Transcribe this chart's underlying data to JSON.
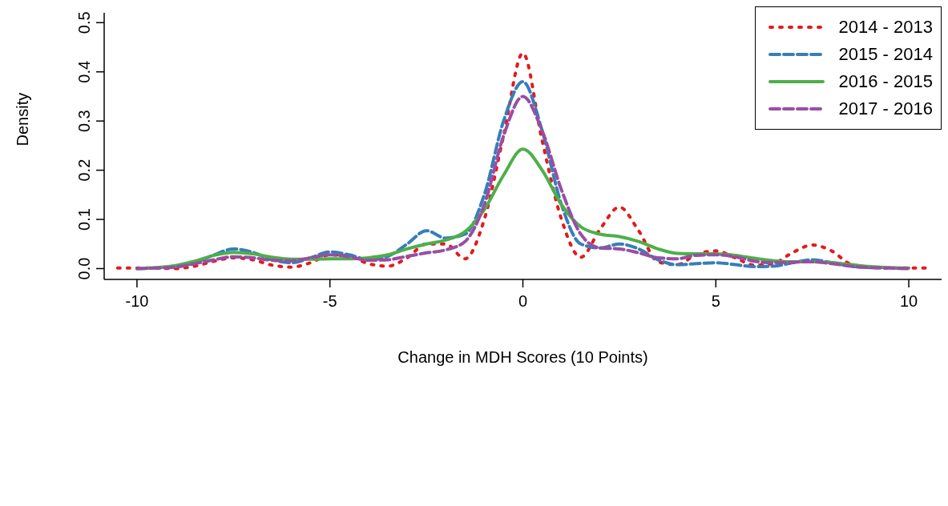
{
  "chart_data": {
    "type": "line",
    "xlabel": "Change in MDH Scores (10 Points)",
    "ylabel": "Density",
    "x": [
      -10.5,
      -10,
      -9.5,
      -9,
      -8.5,
      -8,
      -7.5,
      -7,
      -6.5,
      -6,
      -5.5,
      -5,
      -4.5,
      -4,
      -3.5,
      -3,
      -2.5,
      -2,
      -1.5,
      -1,
      -0.5,
      0,
      0.5,
      1,
      1.5,
      2,
      2.5,
      3,
      3.5,
      4,
      4.5,
      5,
      5.5,
      6,
      6.5,
      7,
      7.5,
      8,
      8.5,
      9,
      9.5,
      10,
      10.5
    ],
    "series": [
      {
        "name": "2014 - 2013",
        "color": "#e41a1c",
        "line_style": "dotted",
        "values": [
          0.001,
          0.001,
          0.001,
          0.0,
          0.005,
          0.015,
          0.022,
          0.018,
          0.007,
          0.003,
          0.012,
          0.028,
          0.025,
          0.01,
          0.005,
          0.022,
          0.05,
          0.05,
          0.02,
          0.1,
          0.27,
          0.438,
          0.26,
          0.1,
          0.023,
          0.08,
          0.125,
          0.077,
          0.014,
          0.008,
          0.029,
          0.036,
          0.022,
          0.007,
          0.011,
          0.033,
          0.048,
          0.036,
          0.009,
          0.003,
          0.001,
          0.001,
          0.001
        ]
      },
      {
        "name": "2015 - 2014",
        "color": "#377eb8",
        "line_style": "dashed",
        "values": [
          null,
          null,
          null,
          0.004,
          0.012,
          0.028,
          0.04,
          0.033,
          0.018,
          0.012,
          0.022,
          0.034,
          0.028,
          0.018,
          0.025,
          0.05,
          0.077,
          0.062,
          0.07,
          0.15,
          0.3,
          0.38,
          0.28,
          0.13,
          0.05,
          0.042,
          0.05,
          0.04,
          0.018,
          0.008,
          0.01,
          0.012,
          0.008,
          0.004,
          0.005,
          0.012,
          0.018,
          0.012,
          0.005,
          0.002,
          null,
          null,
          null
        ]
      },
      {
        "name": "2016 - 2015",
        "color": "#4daf4a",
        "line_style": "solid",
        "values": [
          null,
          0.0,
          0.002,
          0.006,
          0.015,
          0.027,
          0.033,
          0.03,
          0.023,
          0.019,
          0.019,
          0.02,
          0.02,
          0.022,
          0.028,
          0.04,
          0.05,
          0.058,
          0.075,
          0.12,
          0.19,
          0.243,
          0.2,
          0.13,
          0.085,
          0.07,
          0.065,
          0.055,
          0.04,
          0.031,
          0.03,
          0.03,
          0.027,
          0.021,
          0.016,
          0.014,
          0.014,
          0.012,
          0.008,
          0.004,
          0.002,
          0.001,
          null
        ]
      },
      {
        "name": "2017 - 2016",
        "color": "#984ea3",
        "line_style": "dashed",
        "values": [
          null,
          0.0,
          0.001,
          0.003,
          0.01,
          0.018,
          0.024,
          0.022,
          0.017,
          0.016,
          0.022,
          0.028,
          0.024,
          0.017,
          0.018,
          0.025,
          0.032,
          0.038,
          0.055,
          0.13,
          0.27,
          0.35,
          0.28,
          0.16,
          0.07,
          0.042,
          0.04,
          0.032,
          0.022,
          0.02,
          0.027,
          0.028,
          0.024,
          0.015,
          0.012,
          0.013,
          0.014,
          0.01,
          0.005,
          0.002,
          0.001,
          0.0,
          null
        ]
      }
    ],
    "xlim": [
      -10.85,
      10.85
    ],
    "xticks": [
      -10,
      -5,
      0,
      5,
      10
    ],
    "ylim": [
      -0.022,
      0.52
    ],
    "yticks": [
      {
        "value": 0,
        "label": "0.0"
      },
      0.1,
      0.2,
      0.3,
      0.4,
      0.5
    ],
    "legend": "top right",
    "grid": false
  }
}
